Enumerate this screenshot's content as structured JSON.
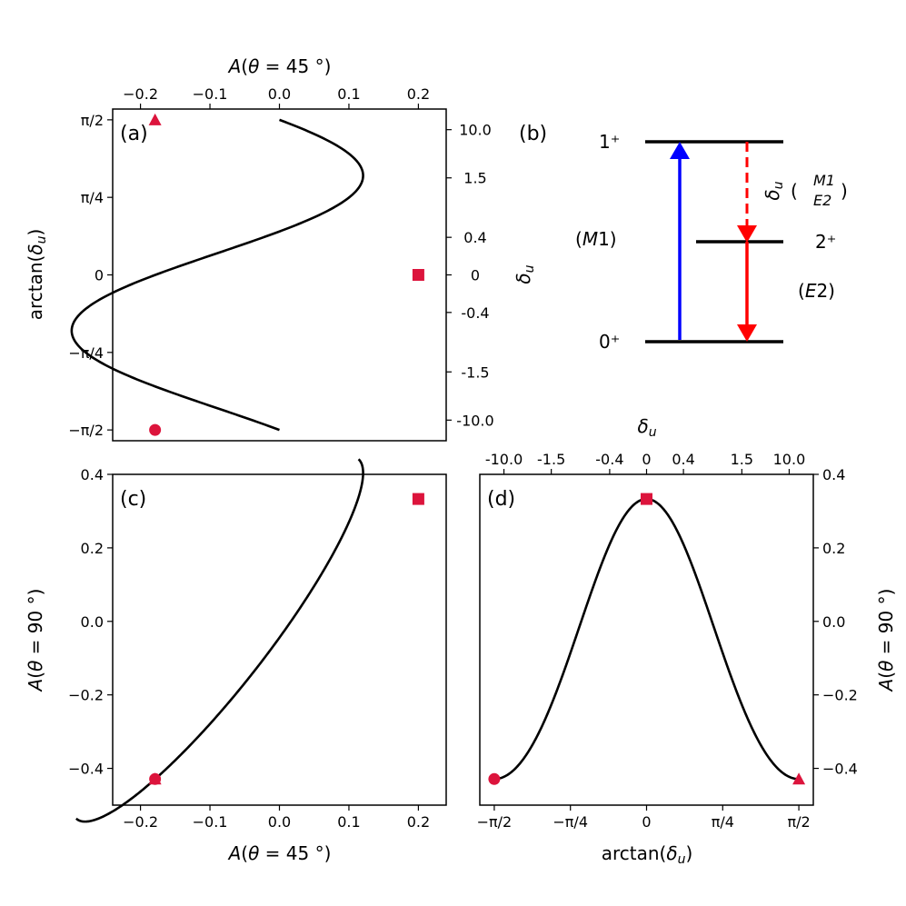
{
  "colors": {
    "marker": "#dc143c",
    "m1_arrow": "#0000ff",
    "e2_arrow": "#ff0000",
    "curve": "#000000"
  },
  "chart_data": [
    {
      "panel": "(a)",
      "type": "line",
      "xlabel_top": "A(θ = 45°)",
      "xlim": [
        -0.24,
        0.24
      ],
      "x_ticks": [
        -0.2,
        -0.1,
        0.0,
        0.1,
        0.2
      ],
      "x_tick_labels": [
        "−0.2",
        "−0.1",
        "0.0",
        "0.1",
        "0.2"
      ],
      "ylabel_left": "arctan(δu)",
      "ylim": [
        -1.68,
        1.68
      ],
      "y_ticks": [
        -1.5708,
        -0.7854,
        0,
        0.7854,
        1.5708
      ],
      "y_tick_labels": [
        "−π/2",
        "−π/4",
        "0",
        "π/4",
        "π/2"
      ],
      "ylabel_right": "δu",
      "y2_ticks": [
        -10.0,
        -1.5,
        -0.4,
        0,
        0.4,
        1.5,
        10.0
      ],
      "y2_tick_labels": [
        "-10.0",
        "-1.5",
        "-0.4",
        "0",
        "0.4",
        "1.5",
        "10.0"
      ],
      "markers": [
        {
          "shape": "triangle",
          "x": -0.179,
          "y": 1.5708
        },
        {
          "shape": "square",
          "x": 0.2,
          "y": 0
        },
        {
          "shape": "circle",
          "x": -0.179,
          "y": -1.5708
        }
      ]
    },
    {
      "panel": "(b)",
      "type": "diagram",
      "levels": [
        {
          "label": "1⁺",
          "energy": 1.0
        },
        {
          "label": "2⁺",
          "energy": 0.5
        },
        {
          "label": "0⁺",
          "energy": 0.0
        }
      ],
      "transitions": [
        {
          "from": "0⁺",
          "to": "1⁺",
          "label": "(M1)",
          "style": "solid"
        },
        {
          "from": "1⁺",
          "to": "2⁺",
          "label": "δu (M1/E2)",
          "style": "dashed"
        },
        {
          "from": "2⁺",
          "to": "0⁺",
          "label": "(E2)",
          "style": "solid"
        }
      ]
    },
    {
      "panel": "(c)",
      "type": "line",
      "xlabel": "A(θ = 45°)",
      "xlim": [
        -0.24,
        0.24
      ],
      "x_ticks": [
        -0.2,
        -0.1,
        0.0,
        0.1,
        0.2
      ],
      "x_tick_labels": [
        "−0.2",
        "−0.1",
        "0.0",
        "0.1",
        "0.2"
      ],
      "ylabel": "A(θ = 90°)",
      "ylim": [
        -0.5,
        0.4
      ],
      "y_ticks": [
        -0.4,
        -0.2,
        0.0,
        0.2,
        0.4
      ],
      "y_tick_labels": [
        "−0.4",
        "−0.2",
        "0.0",
        "0.2",
        "0.4"
      ],
      "markers": [
        {
          "shape": "square",
          "x": 0.2,
          "y": 0.333
        },
        {
          "shape": "circle",
          "x": -0.179,
          "y": -0.429
        },
        {
          "shape": "triangle",
          "x": -0.179,
          "y": -0.429
        }
      ]
    },
    {
      "panel": "(d)",
      "type": "line",
      "xlabel": "arctan(δu)",
      "xlim": [
        -1.72,
        1.72
      ],
      "x_ticks": [
        -1.5708,
        -0.7854,
        0,
        0.7854,
        1.5708
      ],
      "x_tick_labels": [
        "−π/2",
        "−π/4",
        "0",
        "π/4",
        "π/2"
      ],
      "xlabel_top": "δu",
      "x2_ticks": [
        -10.0,
        -1.5,
        -0.4,
        0,
        0.4,
        1.5,
        10.0
      ],
      "x2_tick_labels": [
        "-10.0",
        "-1.5",
        "-0.4",
        "0",
        "0.4",
        "1.5",
        "10.0"
      ],
      "ylabel_right": "A(θ = 90°)",
      "ylim": [
        -0.5,
        0.4
      ],
      "y_ticks": [
        -0.4,
        -0.2,
        0.0,
        0.2,
        0.4
      ],
      "y_tick_labels": [
        "−0.4",
        "−0.2",
        "0.0",
        "0.2",
        "0.4"
      ],
      "markers": [
        {
          "shape": "square",
          "x": 0,
          "y": 0.333
        },
        {
          "shape": "circle",
          "x": -1.5708,
          "y": -0.429
        },
        {
          "shape": "triangle",
          "x": 1.5708,
          "y": -0.429
        }
      ]
    }
  ]
}
